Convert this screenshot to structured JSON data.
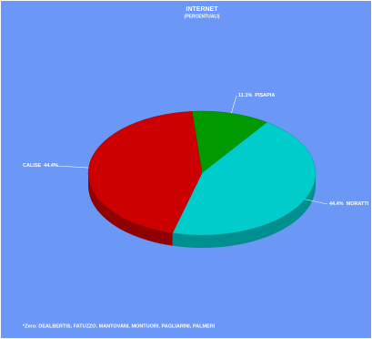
{
  "chart_data": {
    "type": "pie3d",
    "title": "INTERNET",
    "subtitle": "(PERCENTUALI)",
    "categories": [
      "PISAPIA",
      "MORATTI",
      "CALISE"
    ],
    "values": [
      11.1,
      44.4,
      44.4
    ],
    "value_labels": [
      "11.1%",
      "44.4%",
      "44.4%"
    ],
    "colors": [
      "#009900",
      "#00cccc",
      "#cc0000"
    ],
    "footnote": "*Zero: DEALBERTIS, FATUZZO, MANTOVANI, MONTUORI, PAGLIARINI, PALMERI"
  }
}
